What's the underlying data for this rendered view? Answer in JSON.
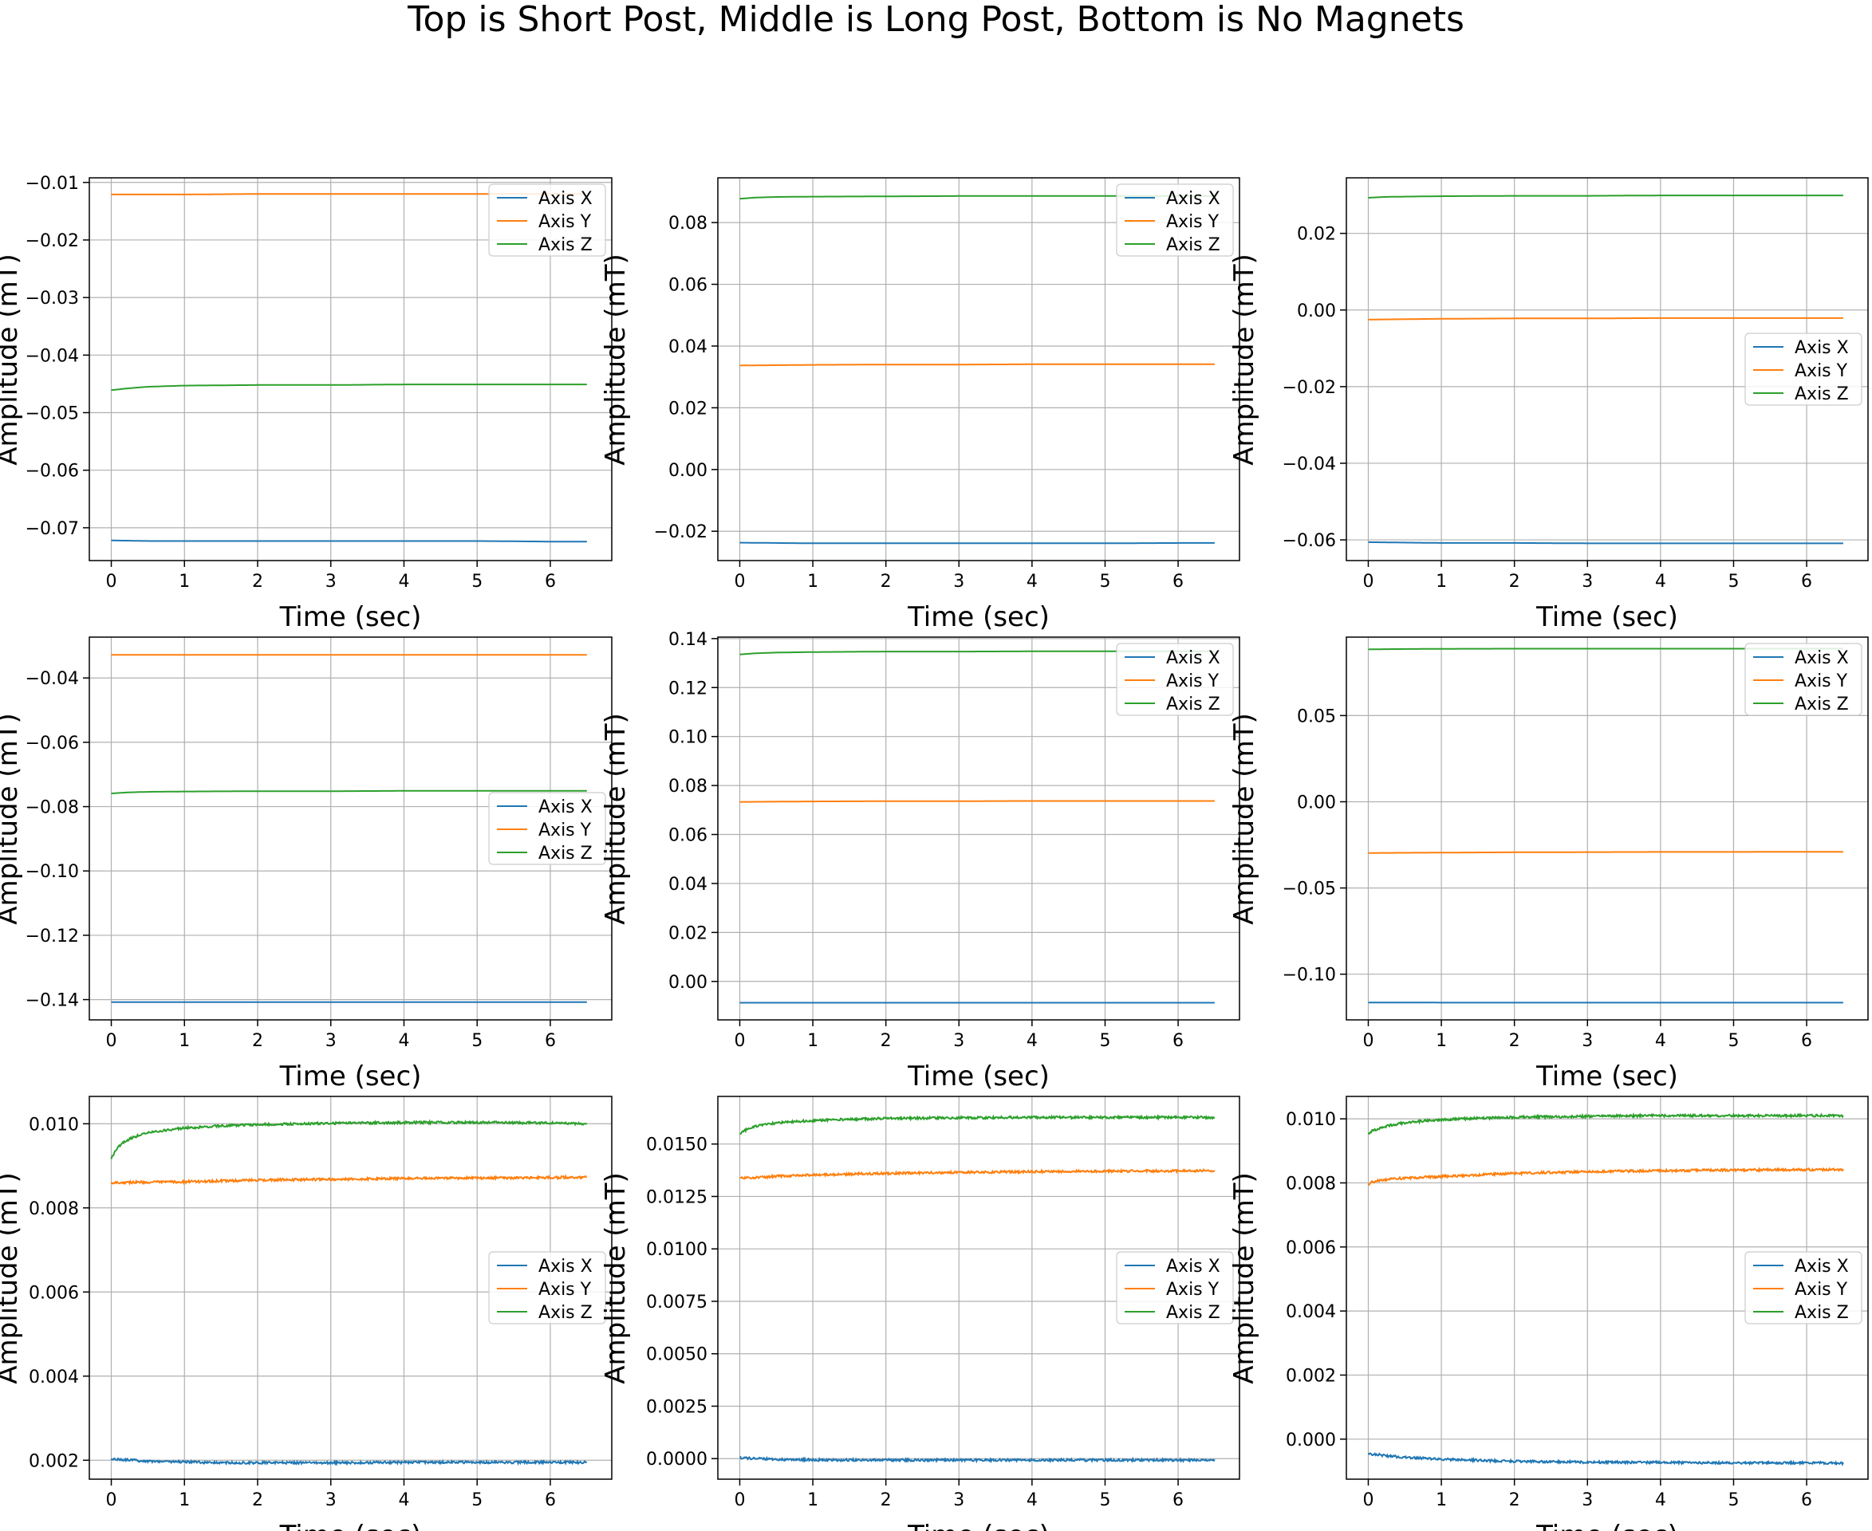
{
  "figure": {
    "suptitle": "Top is Short Post, Middle is Long Post, Bottom is No Magnets"
  },
  "chart_data": [
    {
      "type": "line",
      "xlabel": "Time (sec)",
      "ylabel": "Amplitude (mT)",
      "xlim": [
        -0.3,
        6.84
      ],
      "ylim": [
        -0.0757,
        -0.0092
      ],
      "xticks": [
        0,
        1,
        2,
        3,
        4,
        5,
        6
      ],
      "yticks": [
        -0.07,
        -0.06,
        -0.05,
        -0.04,
        -0.03,
        -0.02,
        -0.01
      ],
      "ytick_labels": [
        "−0.07",
        "−0.06",
        "−0.05",
        "−0.04",
        "−0.03",
        "−0.02",
        "−0.01"
      ],
      "grid": true,
      "legend": "top-right",
      "series": [
        {
          "name": "Axis X",
          "color": "#1f77b4",
          "x": [
            0,
            0.5,
            1,
            2,
            3,
            4,
            5,
            6,
            6.5
          ],
          "values": [
            -0.0722,
            -0.0723,
            -0.0723,
            -0.0723,
            -0.0723,
            -0.0723,
            -0.0723,
            -0.0724,
            -0.0724
          ]
        },
        {
          "name": "Axis Y",
          "color": "#ff7f0e",
          "x": [
            0,
            0.5,
            1,
            2,
            3,
            4,
            5,
            6,
            6.5
          ],
          "values": [
            -0.0121,
            -0.0121,
            -0.0121,
            -0.012,
            -0.012,
            -0.012,
            -0.012,
            -0.012,
            -0.012
          ]
        },
        {
          "name": "Axis Z",
          "color": "#2ca02c",
          "x": [
            0,
            0.2,
            0.5,
            1,
            2,
            3,
            4,
            5,
            6,
            6.5
          ],
          "values": [
            -0.0461,
            -0.0458,
            -0.0455,
            -0.0453,
            -0.0452,
            -0.0452,
            -0.0451,
            -0.0451,
            -0.0451,
            -0.0451
          ]
        }
      ]
    },
    {
      "type": "line",
      "xlabel": "Time (sec)",
      "ylabel": "Amplitude (mT)",
      "xlim": [
        -0.3,
        6.84
      ],
      "ylim": [
        -0.0295,
        0.0945
      ],
      "xticks": [
        0,
        1,
        2,
        3,
        4,
        5,
        6
      ],
      "yticks": [
        -0.02,
        0.0,
        0.02,
        0.04,
        0.06,
        0.08
      ],
      "ytick_labels": [
        "−0.02",
        "0.00",
        "0.02",
        "0.04",
        "0.06",
        "0.08"
      ],
      "grid": true,
      "legend": "top-right",
      "series": [
        {
          "name": "Axis X",
          "color": "#1f77b4",
          "x": [
            0,
            0.5,
            1,
            2,
            3,
            4,
            5,
            6,
            6.5
          ],
          "values": [
            -0.0237,
            -0.0238,
            -0.0239,
            -0.0239,
            -0.0239,
            -0.0239,
            -0.0239,
            -0.0238,
            -0.0238
          ]
        },
        {
          "name": "Axis Y",
          "color": "#ff7f0e",
          "x": [
            0,
            0.5,
            1,
            2,
            3,
            4,
            5,
            6,
            6.5
          ],
          "values": [
            0.0337,
            0.0338,
            0.0339,
            0.034,
            0.034,
            0.0341,
            0.0341,
            0.0341,
            0.0341
          ]
        },
        {
          "name": "Axis Z",
          "color": "#2ca02c",
          "x": [
            0,
            0.2,
            0.5,
            1,
            2,
            3,
            4,
            5,
            6,
            6.5
          ],
          "values": [
            0.0877,
            0.0881,
            0.0883,
            0.0884,
            0.0885,
            0.0886,
            0.0886,
            0.0886,
            0.0886,
            0.0886
          ]
        }
      ]
    },
    {
      "type": "line",
      "xlabel": "Time (sec)",
      "ylabel": "Amplitude (mT)",
      "xlim": [
        -0.3,
        6.84
      ],
      "ylim": [
        -0.0654,
        0.0345
      ],
      "xticks": [
        0,
        1,
        2,
        3,
        4,
        5,
        6
      ],
      "yticks": [
        -0.06,
        -0.04,
        -0.02,
        0.0,
        0.02
      ],
      "ytick_labels": [
        "−0.06",
        "−0.04",
        "−0.02",
        "0.00",
        "0.02"
      ],
      "grid": true,
      "legend": "center-right",
      "series": [
        {
          "name": "Axis X",
          "color": "#1f77b4",
          "x": [
            0,
            0.5,
            1,
            2,
            3,
            4,
            5,
            6,
            6.5
          ],
          "values": [
            -0.0606,
            -0.0607,
            -0.0608,
            -0.0608,
            -0.0609,
            -0.0609,
            -0.0609,
            -0.0609,
            -0.0609
          ]
        },
        {
          "name": "Axis Y",
          "color": "#ff7f0e",
          "x": [
            0,
            0.5,
            1,
            2,
            3,
            4,
            5,
            6,
            6.5
          ],
          "values": [
            -0.0025,
            -0.0024,
            -0.0023,
            -0.0022,
            -0.0022,
            -0.0021,
            -0.0021,
            -0.0021,
            -0.0021
          ]
        },
        {
          "name": "Axis Z",
          "color": "#2ca02c",
          "x": [
            0,
            0.2,
            0.5,
            1,
            2,
            3,
            4,
            5,
            6,
            6.5
          ],
          "values": [
            0.0293,
            0.0295,
            0.0296,
            0.0297,
            0.0298,
            0.0298,
            0.0299,
            0.0299,
            0.0299,
            0.0299
          ]
        }
      ]
    },
    {
      "type": "line",
      "xlabel": "Time (sec)",
      "ylabel": "Amplitude (mT)",
      "xlim": [
        -0.3,
        6.84
      ],
      "ylim": [
        -0.1463,
        -0.0273
      ],
      "xticks": [
        0,
        1,
        2,
        3,
        4,
        5,
        6
      ],
      "yticks": [
        -0.14,
        -0.12,
        -0.1,
        -0.08,
        -0.06,
        -0.04
      ],
      "ytick_labels": [
        "−0.14",
        "−0.12",
        "−0.10",
        "−0.08",
        "−0.06",
        "−0.04"
      ],
      "grid": true,
      "legend": "center-right",
      "series": [
        {
          "name": "Axis X",
          "color": "#1f77b4",
          "x": [
            0,
            0.5,
            1,
            2,
            3,
            4,
            5,
            6,
            6.5
          ],
          "values": [
            -0.1408,
            -0.1408,
            -0.1408,
            -0.1408,
            -0.1408,
            -0.1408,
            -0.1408,
            -0.1408,
            -0.1408
          ]
        },
        {
          "name": "Axis Y",
          "color": "#ff7f0e",
          "x": [
            0,
            0.5,
            1,
            2,
            3,
            4,
            5,
            6,
            6.5
          ],
          "values": [
            -0.0328,
            -0.0328,
            -0.0328,
            -0.0328,
            -0.0328,
            -0.0328,
            -0.0328,
            -0.0328,
            -0.0328
          ]
        },
        {
          "name": "Axis Z",
          "color": "#2ca02c",
          "x": [
            0,
            0.2,
            0.5,
            1,
            2,
            3,
            4,
            5,
            6,
            6.5
          ],
          "values": [
            -0.0759,
            -0.0756,
            -0.0754,
            -0.0753,
            -0.0752,
            -0.0752,
            -0.0751,
            -0.0751,
            -0.0751,
            -0.0751
          ]
        }
      ]
    },
    {
      "type": "line",
      "xlabel": "Time (sec)",
      "ylabel": "Amplitude (mT)",
      "xlim": [
        -0.3,
        6.84
      ],
      "ylim": [
        -0.0157,
        0.1406
      ],
      "xticks": [
        0,
        1,
        2,
        3,
        4,
        5,
        6
      ],
      "yticks": [
        0.0,
        0.02,
        0.04,
        0.06,
        0.08,
        0.1,
        0.12,
        0.14
      ],
      "ytick_labels": [
        "0.00",
        "0.02",
        "0.04",
        "0.06",
        "0.08",
        "0.10",
        "0.12",
        "0.14"
      ],
      "grid": true,
      "legend": "top-right",
      "series": [
        {
          "name": "Axis X",
          "color": "#1f77b4",
          "x": [
            0,
            0.5,
            1,
            2,
            3,
            4,
            5,
            6,
            6.5
          ],
          "values": [
            -0.0087,
            -0.0087,
            -0.0087,
            -0.0087,
            -0.0087,
            -0.0087,
            -0.0087,
            -0.0087,
            -0.0087
          ]
        },
        {
          "name": "Axis Y",
          "color": "#ff7f0e",
          "x": [
            0,
            0.5,
            1,
            2,
            3,
            4,
            5,
            6,
            6.5
          ],
          "values": [
            0.0733,
            0.0734,
            0.0735,
            0.0736,
            0.0736,
            0.0737,
            0.0737,
            0.0737,
            0.0737
          ]
        },
        {
          "name": "Axis Z",
          "color": "#2ca02c",
          "x": [
            0,
            0.2,
            0.5,
            1,
            2,
            3,
            4,
            5,
            6,
            6.5
          ],
          "values": [
            0.1335,
            0.134,
            0.1343,
            0.1345,
            0.1347,
            0.1347,
            0.1348,
            0.1348,
            0.1348,
            0.1348
          ]
        }
      ]
    },
    {
      "type": "line",
      "xlabel": "Time (sec)",
      "ylabel": "Amplitude (mT)",
      "xlim": [
        -0.3,
        6.84
      ],
      "ylim": [
        -0.1265,
        0.0955
      ],
      "xticks": [
        0,
        1,
        2,
        3,
        4,
        5,
        6
      ],
      "yticks": [
        -0.1,
        -0.05,
        0.0,
        0.05
      ],
      "ytick_labels": [
        "−0.10",
        "−0.05",
        "0.00",
        "0.05"
      ],
      "grid": true,
      "legend": "top-right",
      "series": [
        {
          "name": "Axis X",
          "color": "#1f77b4",
          "x": [
            0,
            0.5,
            1,
            2,
            3,
            4,
            5,
            6,
            6.5
          ],
          "values": [
            -0.1164,
            -0.1164,
            -0.1165,
            -0.1165,
            -0.1165,
            -0.1165,
            -0.1165,
            -0.1165,
            -0.1165
          ]
        },
        {
          "name": "Axis Y",
          "color": "#ff7f0e",
          "x": [
            0,
            0.5,
            1,
            2,
            3,
            4,
            5,
            6,
            6.5
          ],
          "values": [
            -0.0297,
            -0.0296,
            -0.0295,
            -0.0293,
            -0.0292,
            -0.0291,
            -0.0291,
            -0.029,
            -0.029
          ]
        },
        {
          "name": "Axis Z",
          "color": "#2ca02c",
          "x": [
            0,
            0.2,
            0.5,
            1,
            2,
            3,
            4,
            5,
            6,
            6.5
          ],
          "values": [
            0.0884,
            0.0885,
            0.0886,
            0.0887,
            0.0888,
            0.0888,
            0.0888,
            0.0888,
            0.0888,
            0.0888
          ]
        }
      ]
    },
    {
      "type": "line",
      "xlabel": "Time (sec)",
      "ylabel": "Amplitude (mT)",
      "xlim": [
        -0.3,
        6.84
      ],
      "ylim": [
        0.00155,
        0.01065
      ],
      "xticks": [
        0,
        1,
        2,
        3,
        4,
        5,
        6
      ],
      "yticks": [
        0.002,
        0.004,
        0.006,
        0.008,
        0.01
      ],
      "ytick_labels": [
        "0.002",
        "0.004",
        "0.006",
        "0.008",
        "0.010"
      ],
      "grid": true,
      "legend": "center-right",
      "series": [
        {
          "name": "Axis X",
          "color": "#1f77b4",
          "x": [
            0,
            0.1,
            0.3,
            0.5,
            1,
            1.5,
            2,
            3,
            4,
            5,
            6,
            6.5
          ],
          "values": [
            0.00203,
            0.00202,
            0.002,
            0.00198,
            0.00196,
            0.00194,
            0.00194,
            0.00194,
            0.00195,
            0.00195,
            0.00195,
            0.00195
          ]
        },
        {
          "name": "Axis Y",
          "color": "#ff7f0e",
          "x": [
            0,
            0.3,
            0.5,
            1,
            1.5,
            2,
            3,
            4,
            5,
            6,
            6.5
          ],
          "values": [
            0.0086,
            0.00861,
            0.00861,
            0.00862,
            0.00864,
            0.00866,
            0.00868,
            0.0087,
            0.00871,
            0.00872,
            0.00873
          ]
        },
        {
          "name": "Axis Z",
          "color": "#2ca02c",
          "x": [
            0,
            0.05,
            0.15,
            0.3,
            0.5,
            0.75,
            1,
            1.5,
            2,
            2.5,
            3,
            4,
            5,
            6,
            6.5
          ],
          "values": [
            0.00915,
            0.00935,
            0.00955,
            0.00968,
            0.00978,
            0.00985,
            0.0099,
            0.00995,
            0.00998,
            0.01,
            0.01001,
            0.01003,
            0.01003,
            0.01002,
            0.01
          ]
        }
      ]
    },
    {
      "type": "line",
      "xlabel": "Time (sec)",
      "ylabel": "Amplitude (mT)",
      "xlim": [
        -0.3,
        6.84
      ],
      "ylim": [
        -0.00098,
        0.01727
      ],
      "xticks": [
        0,
        1,
        2,
        3,
        4,
        5,
        6
      ],
      "yticks": [
        0.0,
        0.0025,
        0.005,
        0.0075,
        0.01,
        0.0125,
        0.015
      ],
      "ytick_labels": [
        "0.0000",
        "0.0025",
        "0.0050",
        "0.0075",
        "0.0100",
        "0.0125",
        "0.0150"
      ],
      "grid": true,
      "legend": "center-right",
      "series": [
        {
          "name": "Axis X",
          "color": "#1f77b4",
          "x": [
            0,
            0.2,
            0.5,
            1,
            2,
            3,
            4,
            5,
            6,
            6.5
          ],
          "values": [
            5e-05,
            0.0,
            -4e-05,
            -6e-05,
            -7e-05,
            -7e-05,
            -7e-05,
            -7e-05,
            -7e-05,
            -7e-05
          ]
        },
        {
          "name": "Axis Y",
          "color": "#ff7f0e",
          "x": [
            0,
            0.3,
            0.5,
            1,
            1.5,
            2,
            3,
            4,
            5,
            6,
            6.5
          ],
          "values": [
            0.01337,
            0.01342,
            0.01346,
            0.01352,
            0.01357,
            0.0136,
            0.01365,
            0.01368,
            0.0137,
            0.01372,
            0.01373
          ]
        },
        {
          "name": "Axis Z",
          "color": "#2ca02c",
          "x": [
            0,
            0.05,
            0.15,
            0.3,
            0.5,
            0.75,
            1,
            1.5,
            2,
            3,
            4,
            5,
            6,
            6.5
          ],
          "values": [
            0.01545,
            0.01562,
            0.01578,
            0.0159,
            0.016,
            0.01607,
            0.01612,
            0.01618,
            0.01622,
            0.01625,
            0.01627,
            0.01627,
            0.01627,
            0.01627
          ]
        }
      ]
    },
    {
      "type": "line",
      "xlabel": "Time (sec)",
      "ylabel": "Amplitude (mT)",
      "xlim": [
        -0.3,
        6.84
      ],
      "ylim": [
        -0.00125,
        0.0107
      ],
      "xticks": [
        0,
        1,
        2,
        3,
        4,
        5,
        6
      ],
      "yticks": [
        0.0,
        0.002,
        0.004,
        0.006,
        0.008,
        0.01
      ],
      "ytick_labels": [
        "0.000",
        "0.002",
        "0.004",
        "0.006",
        "0.008",
        "0.010"
      ],
      "grid": true,
      "legend": "center-right",
      "series": [
        {
          "name": "Axis X",
          "color": "#1f77b4",
          "x": [
            0,
            0.1,
            0.3,
            0.5,
            1,
            1.5,
            2,
            3,
            4,
            5,
            6,
            6.5
          ],
          "values": [
            -0.00045,
            -0.00048,
            -0.00053,
            -0.00057,
            -0.00063,
            -0.00066,
            -0.00069,
            -0.00072,
            -0.00073,
            -0.00074,
            -0.00074,
            -0.00075
          ]
        },
        {
          "name": "Axis Y",
          "color": "#ff7f0e",
          "x": [
            0,
            0.05,
            0.15,
            0.3,
            0.5,
            1,
            1.5,
            2,
            3,
            4,
            5,
            6,
            6.5
          ],
          "values": [
            0.00795,
            0.00802,
            0.00808,
            0.00812,
            0.00815,
            0.0082,
            0.00825,
            0.0083,
            0.00835,
            0.00838,
            0.0084,
            0.00841,
            0.00842
          ]
        },
        {
          "name": "Axis Z",
          "color": "#2ca02c",
          "x": [
            0,
            0.05,
            0.15,
            0.3,
            0.5,
            0.75,
            1,
            1.5,
            2,
            3,
            4,
            5,
            6,
            6.5
          ],
          "values": [
            0.00955,
            0.00962,
            0.0097,
            0.0098,
            0.00988,
            0.00993,
            0.00997,
            0.01002,
            0.01005,
            0.01008,
            0.0101,
            0.0101,
            0.0101,
            0.0101
          ]
        }
      ]
    }
  ]
}
